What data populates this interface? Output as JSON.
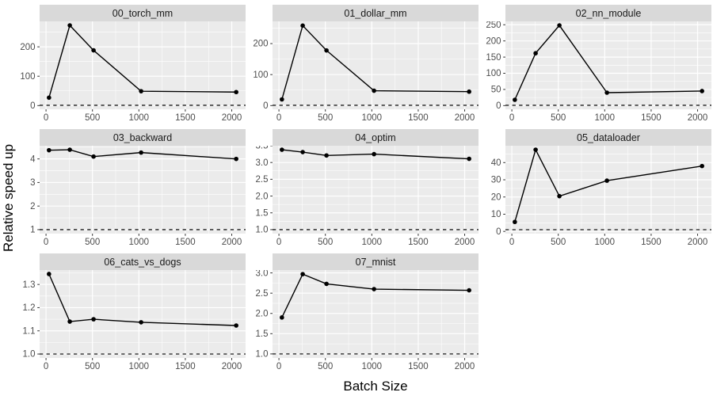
{
  "figure": {
    "x_axis_title": "Batch Size",
    "y_axis_title": "Relative speed up"
  },
  "chart_data": {
    "type": "line",
    "title": "",
    "xlabel": "Batch Size",
    "ylabel": "Relative speed up",
    "layout": "facet-grid 3 columns, 8 panels, free y scales, last cell empty",
    "legend": "none",
    "grid": true,
    "colors": {
      "panel_bg": "#EBEBEB",
      "strip_bg": "#D9D9D9",
      "gridline": "#FFFFFF",
      "line": "#000000",
      "axis_text": "#4D4D4D",
      "tick_mark": "#333333"
    },
    "x": [
      32,
      256,
      512,
      1024,
      2048
    ],
    "xlim": [
      -69,
      2149
    ],
    "x_ticks": [
      0,
      500,
      1000,
      1500,
      2000
    ],
    "x_tick_labels": [
      "0",
      "500",
      "1000",
      "1500",
      "2000"
    ],
    "reference_line": {
      "y": 1,
      "style": "dashed"
    },
    "panels": [
      {
        "title": "00_torch_mm",
        "values": [
          27,
          273,
          188,
          49,
          46
        ],
        "y_ticks": [
          0,
          100,
          200
        ],
        "y_tick_labels": [
          "0",
          "100",
          "200"
        ],
        "ylim": [
          -12.6,
          286.6
        ]
      },
      {
        "title": "01_dollar_mm",
        "values": [
          20,
          258,
          178,
          48,
          45
        ],
        "y_ticks": [
          0,
          100,
          200
        ],
        "y_tick_labels": [
          "0",
          "100",
          "200"
        ],
        "ylim": [
          -11.9,
          271.6
        ]
      },
      {
        "title": "02_nn_module",
        "values": [
          18,
          162,
          248,
          40,
          45
        ],
        "y_ticks": [
          0,
          50,
          100,
          150,
          200,
          250
        ],
        "y_tick_labels": [
          "0",
          "50",
          "100",
          "150",
          "200",
          "250"
        ],
        "ylim": [
          -11.4,
          260.4
        ]
      },
      {
        "title": "03_backward",
        "values": [
          4.37,
          4.39,
          4.1,
          4.27,
          4.0
        ],
        "y_ticks": [
          1,
          2,
          3,
          4
        ],
        "y_tick_labels": [
          "1",
          "2",
          "3",
          "4"
        ],
        "ylim": [
          0.83,
          4.56
        ]
      },
      {
        "title": "04_optim",
        "values": [
          3.38,
          3.31,
          3.21,
          3.25,
          3.11
        ],
        "y_ticks": [
          1.0,
          1.5,
          2.0,
          2.5,
          3.0,
          3.5
        ],
        "y_tick_labels": [
          "1.0",
          "1.5",
          "2.0",
          "2.5",
          "3.0",
          "3.5"
        ],
        "ylim": [
          0.88,
          3.5
        ]
      },
      {
        "title": "05_dataloader",
        "values": [
          5.5,
          47.5,
          20.5,
          29.5,
          38
        ],
        "y_ticks": [
          0,
          10,
          20,
          30,
          40
        ],
        "y_tick_labels": [
          "0",
          "10",
          "20",
          "30",
          "40"
        ],
        "ylim": [
          -1.3,
          49.8
        ]
      },
      {
        "title": "06_cats_vs_dogs",
        "values": [
          1.345,
          1.14,
          1.15,
          1.137,
          1.123
        ],
        "y_ticks": [
          1.0,
          1.1,
          1.2,
          1.3
        ],
        "y_tick_labels": [
          "1.0",
          "1.1",
          "1.2",
          "1.3"
        ],
        "ylim": [
          0.983,
          1.362
        ]
      },
      {
        "title": "07_mnist",
        "values": [
          1.9,
          2.97,
          2.73,
          2.6,
          2.57
        ],
        "y_ticks": [
          1.0,
          1.5,
          2.0,
          2.5,
          3.0
        ],
        "y_tick_labels": [
          "1.0",
          "1.5",
          "2.0",
          "2.5",
          "3.0"
        ],
        "ylim": [
          0.9,
          3.07
        ]
      }
    ]
  }
}
